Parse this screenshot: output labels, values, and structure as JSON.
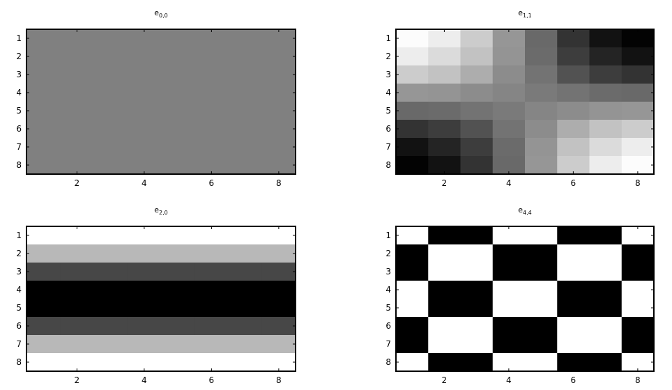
{
  "chart_data": [
    {
      "type": "heatmap",
      "title": "e",
      "title_subscript": "0,0",
      "x_ticks": [
        2,
        4,
        6,
        8
      ],
      "y_ticks": [
        1,
        2,
        3,
        4,
        5,
        6,
        7,
        8
      ],
      "xlim": [
        0.5,
        8.5
      ],
      "ylim": [
        0.5,
        8.5
      ],
      "colormap": "gray",
      "values": [
        [
          0.5,
          0.5,
          0.5,
          0.5,
          0.5,
          0.5,
          0.5,
          0.5
        ],
        [
          0.5,
          0.5,
          0.5,
          0.5,
          0.5,
          0.5,
          0.5,
          0.5
        ],
        [
          0.5,
          0.5,
          0.5,
          0.5,
          0.5,
          0.5,
          0.5,
          0.5
        ],
        [
          0.5,
          0.5,
          0.5,
          0.5,
          0.5,
          0.5,
          0.5,
          0.5
        ],
        [
          0.5,
          0.5,
          0.5,
          0.5,
          0.5,
          0.5,
          0.5,
          0.5
        ],
        [
          0.5,
          0.5,
          0.5,
          0.5,
          0.5,
          0.5,
          0.5,
          0.5
        ],
        [
          0.5,
          0.5,
          0.5,
          0.5,
          0.5,
          0.5,
          0.5,
          0.5
        ],
        [
          0.5,
          0.5,
          0.5,
          0.5,
          0.5,
          0.5,
          0.5,
          0.5
        ]
      ]
    },
    {
      "type": "heatmap",
      "title": "e",
      "title_subscript": "1,1",
      "x_ticks": [
        2,
        4,
        6,
        8
      ],
      "y_ticks": [
        1,
        2,
        3,
        4,
        5,
        6,
        7,
        8
      ],
      "xlim": [
        0.5,
        8.5
      ],
      "ylim": [
        0.5,
        8.5
      ],
      "colormap": "gray",
      "values": [
        [
          0.99,
          0.93,
          0.8,
          0.59,
          0.41,
          0.2,
          0.07,
          0.01
        ],
        [
          0.93,
          0.86,
          0.76,
          0.58,
          0.42,
          0.24,
          0.14,
          0.07
        ],
        [
          0.8,
          0.76,
          0.68,
          0.55,
          0.45,
          0.32,
          0.24,
          0.2
        ],
        [
          0.59,
          0.58,
          0.55,
          0.52,
          0.48,
          0.45,
          0.42,
          0.41
        ],
        [
          0.41,
          0.42,
          0.45,
          0.48,
          0.52,
          0.55,
          0.58,
          0.59
        ],
        [
          0.2,
          0.24,
          0.32,
          0.45,
          0.55,
          0.68,
          0.76,
          0.8
        ],
        [
          0.07,
          0.14,
          0.24,
          0.42,
          0.58,
          0.76,
          0.86,
          0.93
        ],
        [
          0.01,
          0.07,
          0.2,
          0.41,
          0.59,
          0.8,
          0.93,
          0.99
        ]
      ]
    },
    {
      "type": "heatmap",
      "title": "e",
      "title_subscript": "2,0",
      "x_ticks": [
        2,
        4,
        6,
        8
      ],
      "y_ticks": [
        1,
        2,
        3,
        4,
        5,
        6,
        7,
        8
      ],
      "xlim": [
        0.5,
        8.5
      ],
      "ylim": [
        0.5,
        8.5
      ],
      "colormap": "gray",
      "values": [
        [
          1.0,
          1.0,
          1.0,
          1.0,
          1.0,
          1.0,
          1.0,
          1.0
        ],
        [
          0.72,
          0.72,
          0.72,
          0.72,
          0.72,
          0.72,
          0.72,
          0.72
        ],
        [
          0.28,
          0.28,
          0.28,
          0.28,
          0.28,
          0.28,
          0.28,
          0.28
        ],
        [
          0.0,
          0.0,
          0.0,
          0.0,
          0.0,
          0.0,
          0.0,
          0.0
        ],
        [
          0.0,
          0.0,
          0.0,
          0.0,
          0.0,
          0.0,
          0.0,
          0.0
        ],
        [
          0.28,
          0.28,
          0.28,
          0.28,
          0.28,
          0.28,
          0.28,
          0.28
        ],
        [
          0.72,
          0.72,
          0.72,
          0.72,
          0.72,
          0.72,
          0.72,
          0.72
        ],
        [
          1.0,
          1.0,
          1.0,
          1.0,
          1.0,
          1.0,
          1.0,
          1.0
        ]
      ]
    },
    {
      "type": "heatmap",
      "title": "e",
      "title_subscript": "4,4",
      "x_ticks": [
        2,
        4,
        6,
        8
      ],
      "y_ticks": [
        1,
        2,
        3,
        4,
        5,
        6,
        7,
        8
      ],
      "xlim": [
        0.5,
        8.5
      ],
      "ylim": [
        0.5,
        8.5
      ],
      "colormap": "gray",
      "values": [
        [
          1,
          0,
          0,
          1,
          1,
          0,
          0,
          1
        ],
        [
          0,
          1,
          1,
          0,
          0,
          1,
          1,
          0
        ],
        [
          0,
          1,
          1,
          0,
          0,
          1,
          1,
          0
        ],
        [
          1,
          0,
          0,
          1,
          1,
          0,
          0,
          1
        ],
        [
          1,
          0,
          0,
          1,
          1,
          0,
          0,
          1
        ],
        [
          0,
          1,
          1,
          0,
          0,
          1,
          1,
          0
        ],
        [
          0,
          1,
          1,
          0,
          0,
          1,
          1,
          0
        ],
        [
          1,
          0,
          0,
          1,
          1,
          0,
          0,
          1
        ]
      ]
    }
  ]
}
